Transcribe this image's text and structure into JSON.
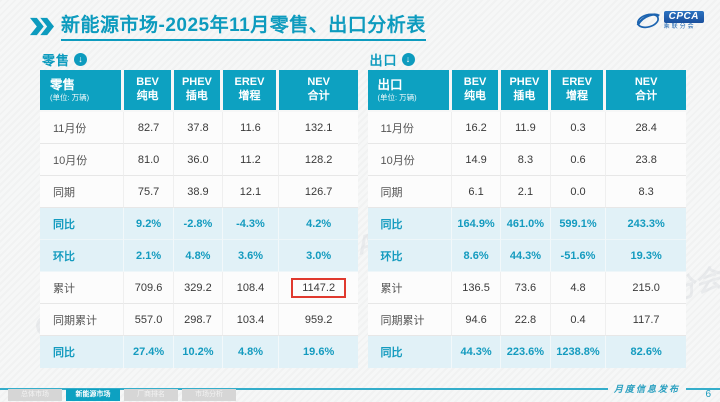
{
  "header": {
    "title_main": "新能源市场",
    "title_rest": "-2025年11月零售、出口分析表"
  },
  "logo": {
    "text": "CPCA",
    "subtext": "乘联分会"
  },
  "watermark": "CPCA 乘联分会",
  "icons": {
    "title_icon": "double-chevron-icon",
    "section_icon": "circle-down-arrow-icon",
    "arrow_glyph": "↓"
  },
  "colors": {
    "accent": "#0da1c1",
    "accent_text": "#149bbf",
    "pct_row_bg": "#e1f1f7",
    "highlight_red": "#e0392e",
    "logo_blue": "#1c64b0"
  },
  "chart_data": [
    {
      "type": "table",
      "section_label": "零售",
      "corner_title": "零售",
      "unit": "(单位: 万辆)",
      "columns": [
        [
          "BEV",
          "纯电"
        ],
        [
          "PHEV",
          "插电"
        ],
        [
          "EREV",
          "增程"
        ],
        [
          "NEV",
          "合计"
        ]
      ],
      "rows": [
        {
          "label": "11月份",
          "style": "plain",
          "values": [
            "82.7",
            "37.8",
            "11.6",
            "132.1"
          ]
        },
        {
          "label": "10月份",
          "style": "plain",
          "values": [
            "81.0",
            "36.0",
            "11.2",
            "128.2"
          ]
        },
        {
          "label": "同期",
          "style": "plain",
          "values": [
            "75.7",
            "38.9",
            "12.1",
            "126.7"
          ]
        },
        {
          "label": "同比",
          "style": "pct",
          "values": [
            "9.2%",
            "-2.8%",
            "-4.3%",
            "4.2%"
          ]
        },
        {
          "label": "环比",
          "style": "pct",
          "values": [
            "2.1%",
            "4.8%",
            "3.6%",
            "3.0%"
          ]
        },
        {
          "label": "累计",
          "style": "plain",
          "values": [
            "709.6",
            "329.2",
            "108.4",
            "1147.2"
          ],
          "highlight": 3
        },
        {
          "label": "同期累计",
          "style": "plain",
          "values": [
            "557.0",
            "298.7",
            "103.4",
            "959.2"
          ]
        },
        {
          "label": "同比",
          "style": "pct",
          "values": [
            "27.4%",
            "10.2%",
            "4.8%",
            "19.6%"
          ]
        }
      ]
    },
    {
      "type": "table",
      "section_label": "出口",
      "corner_title": "出口",
      "unit": "(单位: 万辆)",
      "columns": [
        [
          "BEV",
          "纯电"
        ],
        [
          "PHEV",
          "插电"
        ],
        [
          "EREV",
          "增程"
        ],
        [
          "NEV",
          "合计"
        ]
      ],
      "rows": [
        {
          "label": "11月份",
          "style": "plain",
          "values": [
            "16.2",
            "11.9",
            "0.3",
            "28.4"
          ]
        },
        {
          "label": "10月份",
          "style": "plain",
          "values": [
            "14.9",
            "8.3",
            "0.6",
            "23.8"
          ]
        },
        {
          "label": "同期",
          "style": "plain",
          "values": [
            "6.1",
            "2.1",
            "0.0",
            "8.3"
          ]
        },
        {
          "label": "同比",
          "style": "pct",
          "values": [
            "164.9%",
            "461.0%",
            "599.1%",
            "243.3%"
          ]
        },
        {
          "label": "环比",
          "style": "pct",
          "values": [
            "8.6%",
            "44.3%",
            "-51.6%",
            "19.3%"
          ]
        },
        {
          "label": "累计",
          "style": "plain",
          "values": [
            "136.5",
            "73.6",
            "4.8",
            "215.0"
          ]
        },
        {
          "label": "同期累计",
          "style": "plain",
          "values": [
            "94.6",
            "22.8",
            "0.4",
            "117.7"
          ]
        },
        {
          "label": "同比",
          "style": "pct",
          "values": [
            "44.3%",
            "223.6%",
            "1238.8%",
            "82.6%"
          ]
        }
      ]
    }
  ],
  "tabs": [
    {
      "label": "总体市场",
      "active": false
    },
    {
      "label": "新能源市场",
      "active": true
    },
    {
      "label": "厂商排名",
      "active": false
    },
    {
      "label": "市场分析",
      "active": false
    }
  ],
  "footer": {
    "script_label": "月度信息发布",
    "page_number": "6"
  }
}
